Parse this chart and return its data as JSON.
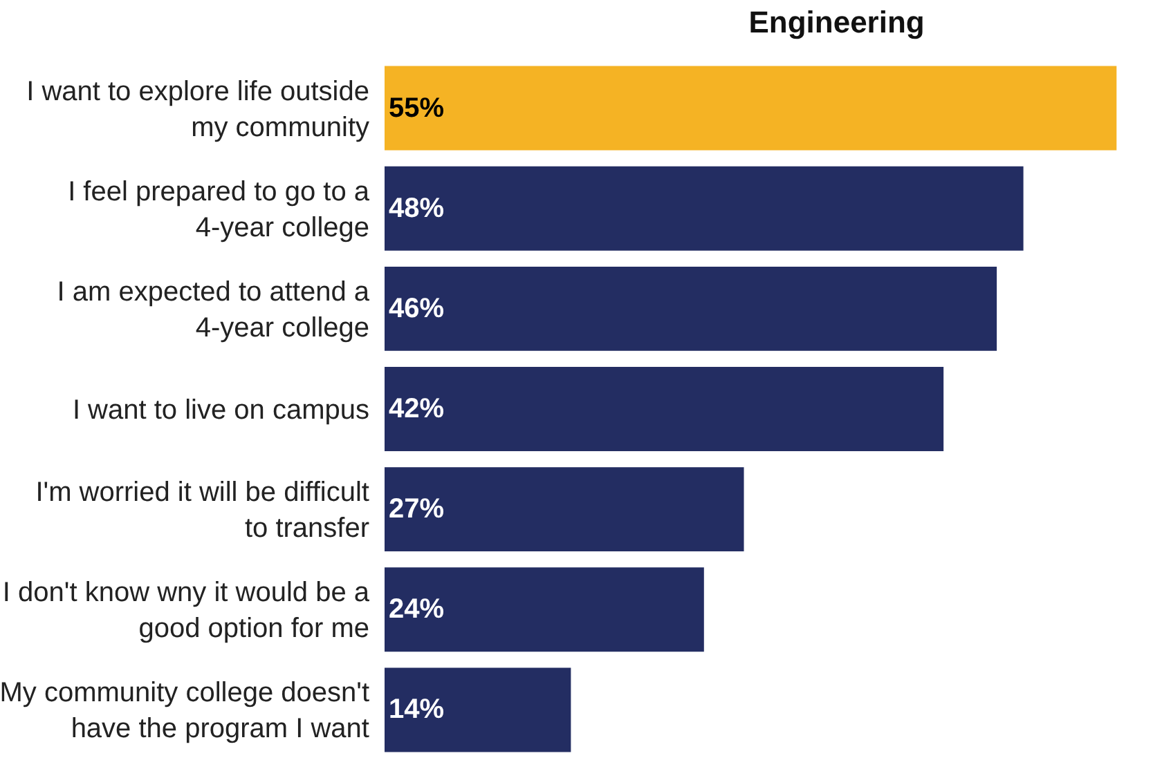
{
  "chart_data": {
    "type": "bar",
    "orientation": "horizontal",
    "title": "Engineering",
    "categories": [
      "I want to explore life outside\nmy community",
      "I feel prepared to go to a\n4-year college",
      "I am expected to attend a\n4-year college",
      "I want to live on campus",
      "I'm worried it will be difficult\nto transfer",
      "I don't know wny it would be a\ngood option for me",
      "My community college doesn't\nhave the program I want"
    ],
    "values": [
      55,
      48,
      46,
      42,
      27,
      24,
      14
    ],
    "colors": [
      "#f5b324",
      "#232d62",
      "#232d62",
      "#232d62",
      "#232d62",
      "#232d62",
      "#232d62"
    ],
    "value_labels": [
      "55%",
      "48%",
      "46%",
      "42%",
      "27%",
      "24%",
      "14%"
    ],
    "legend": false
  }
}
